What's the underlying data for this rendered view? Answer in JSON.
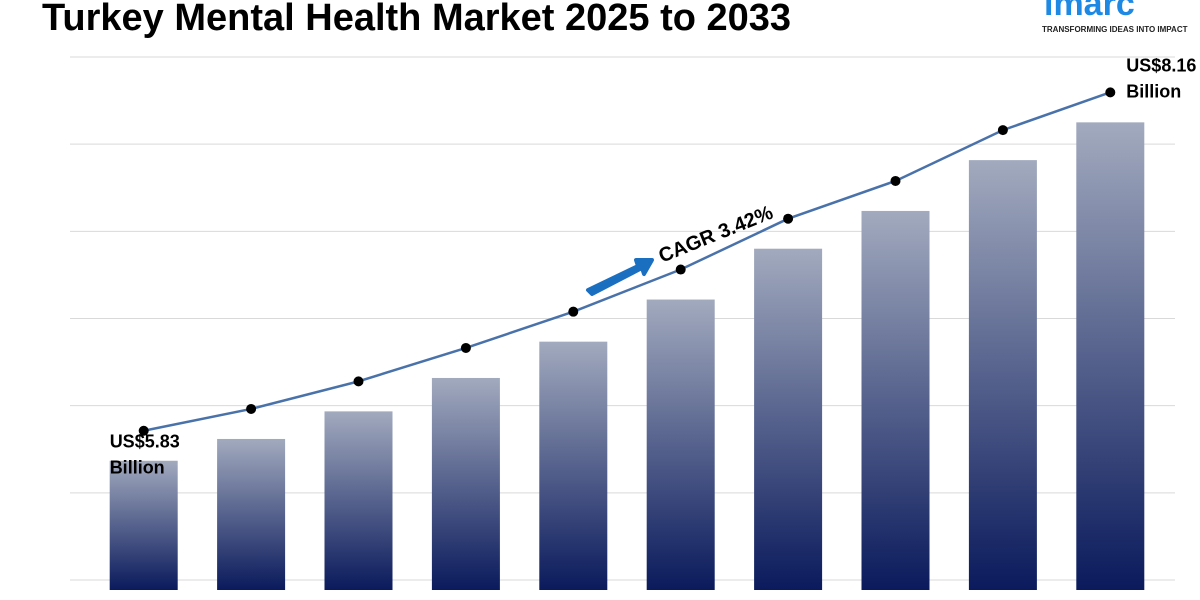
{
  "chart_data": {
    "type": "bar",
    "title": "Turkey Mental Health Market 2025 to 2033",
    "logo": {
      "name": "imarc",
      "tagline": "TRANSFORMING IDEAS INTO IMPACT"
    },
    "annotation": "CAGR 3.42%",
    "categories": [
      null,
      null,
      null,
      null,
      null,
      null,
      null,
      null,
      null,
      null
    ],
    "values": [
      5.83,
      5.98,
      6.17,
      6.4,
      6.65,
      6.94,
      7.29,
      7.55,
      7.9,
      8.16
    ],
    "value_labels": [
      "US$5.83 Billion",
      null,
      null,
      null,
      null,
      null,
      null,
      null,
      null,
      "US$8.16 Billion"
    ],
    "color": "#0a1a5c",
    "line_color": "#4a72aa",
    "ylim": [
      4.94,
      8.61
    ]
  }
}
